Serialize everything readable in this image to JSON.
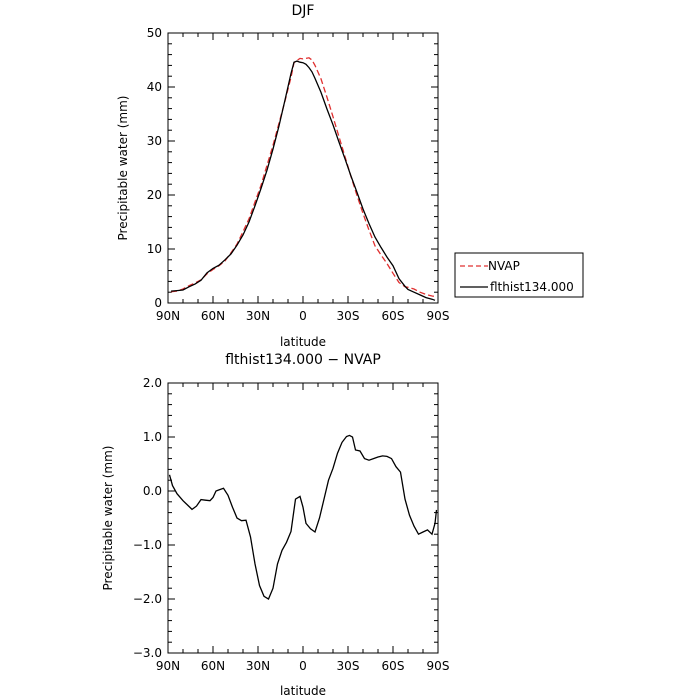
{
  "chart_data": [
    {
      "type": "line",
      "title": "DJF",
      "xlabel": "latitude",
      "ylabel": "Precipitable water (mm)",
      "xlim": [
        90,
        -90
      ],
      "ylim": [
        0,
        50
      ],
      "x_ticks": [
        90,
        60,
        30,
        0,
        -30,
        -60,
        -90
      ],
      "x_tick_labels": [
        "90N",
        "60N",
        "30N",
        "0",
        "30S",
        "60S",
        "90S"
      ],
      "y_ticks": [
        0,
        10,
        20,
        30,
        40,
        50
      ],
      "y_tick_labels": [
        "0",
        "10",
        "20",
        "30",
        "40",
        "50"
      ],
      "legend": "outside-right",
      "grid": false,
      "series": [
        {
          "name": "NVAP",
          "color": "#e03030",
          "style": "dashed",
          "x": [
            88,
            84,
            80,
            76,
            72,
            68,
            64,
            60,
            56,
            52,
            48,
            44,
            40,
            36,
            32,
            28,
            24,
            20,
            16,
            12,
            8,
            6,
            4,
            2,
            0,
            -2,
            -4,
            -6,
            -8,
            -12,
            -16,
            -20,
            -24,
            -28,
            -32,
            -36,
            -40,
            -44,
            -48,
            -52,
            -56,
            -60,
            -64,
            -68,
            -70,
            -74,
            -78,
            -82,
            -86,
            -88
          ],
          "y": [
            2.1,
            2.2,
            2.6,
            3.2,
            3.7,
            4.3,
            5.4,
            6.2,
            6.9,
            7.8,
            9.3,
            10.9,
            13.2,
            15.6,
            18.7,
            21.8,
            25.5,
            29.2,
            33.3,
            37.4,
            41.8,
            44.5,
            44.9,
            45.3,
            45.2,
            45.3,
            45.4,
            45.0,
            44.0,
            41.5,
            38.1,
            34.5,
            30.8,
            27.1,
            23.4,
            19.9,
            16.6,
            13.5,
            10.6,
            8.9,
            7.3,
            5.5,
            3.8,
            3.0,
            2.9,
            2.6,
            2.0,
            1.6,
            1.3,
            1.2
          ]
        },
        {
          "name": "flthist134.000",
          "color": "#000000",
          "style": "solid",
          "x": [
            88,
            84,
            80,
            76,
            72,
            68,
            64,
            60,
            56,
            52,
            48,
            44,
            40,
            36,
            32,
            28,
            24,
            20,
            16,
            12,
            8,
            6,
            4,
            2,
            0,
            -2,
            -4,
            -6,
            -8,
            -12,
            -16,
            -20,
            -24,
            -28,
            -32,
            -36,
            -40,
            -44,
            -48,
            -52,
            -56,
            -60,
            -64,
            -68,
            -70,
            -74,
            -78,
            -82,
            -86,
            -88
          ],
          "y": [
            2.2,
            2.3,
            2.4,
            3.0,
            3.5,
            4.2,
            5.6,
            6.4,
            7.0,
            8.0,
            9.1,
            10.7,
            12.6,
            15.0,
            18.0,
            21.2,
            24.6,
            28.5,
            32.8,
            37.6,
            42.5,
            44.6,
            44.8,
            44.6,
            44.5,
            44.2,
            43.6,
            42.8,
            41.6,
            39.0,
            35.9,
            33.0,
            29.8,
            26.7,
            23.5,
            20.5,
            17.4,
            14.7,
            12.2,
            10.3,
            8.5,
            6.9,
            4.5,
            3.1,
            2.5,
            2.0,
            1.5,
            1.0,
            0.7,
            0.5
          ]
        }
      ]
    },
    {
      "type": "line",
      "title": "flthist134.000 − NVAP",
      "xlabel": "latitude",
      "ylabel": "Precipitable water (mm)",
      "xlim": [
        90,
        -90
      ],
      "ylim": [
        -3.0,
        2.0
      ],
      "x_ticks": [
        90,
        60,
        30,
        0,
        -30,
        -60,
        -90
      ],
      "x_tick_labels": [
        "90N",
        "60N",
        "30N",
        "0",
        "30S",
        "60S",
        "90S"
      ],
      "y_ticks": [
        -3,
        -2,
        -1,
        0,
        1,
        2
      ],
      "y_tick_labels": [
        "−3.0",
        "−2.0",
        "−1.0",
        "0.0",
        "1.0",
        "2.0"
      ],
      "legend": "none",
      "grid": false,
      "series": [
        {
          "color": "#000000",
          "style": "solid",
          "x": [
            89,
            87,
            84,
            80,
            77,
            74,
            71,
            68,
            65,
            62,
            60,
            58,
            56,
            53,
            50,
            47,
            44,
            41,
            38,
            35,
            32,
            29,
            26,
            23,
            20,
            17,
            14,
            11,
            8,
            5,
            2,
            0,
            -2,
            -5,
            -8,
            -11,
            -14,
            -17,
            -20,
            -23,
            -26,
            -29,
            -31,
            -33,
            -35,
            -38,
            -41,
            -44,
            -47,
            -50,
            -53,
            -56,
            -59,
            -62,
            -65,
            -68,
            -71,
            -74,
            -77,
            -80,
            -83,
            -86,
            -88,
            -89
          ],
          "y": [
            0.3,
            0.1,
            -0.05,
            -0.18,
            -0.26,
            -0.34,
            -0.28,
            -0.16,
            -0.17,
            -0.18,
            -0.12,
            0.0,
            0.02,
            0.05,
            -0.08,
            -0.3,
            -0.5,
            -0.55,
            -0.54,
            -0.85,
            -1.35,
            -1.75,
            -1.95,
            -2.0,
            -1.8,
            -1.35,
            -1.1,
            -0.95,
            -0.75,
            -0.15,
            -0.1,
            -0.3,
            -0.6,
            -0.7,
            -0.76,
            -0.5,
            -0.15,
            0.2,
            0.42,
            0.7,
            0.9,
            1.01,
            1.03,
            1.0,
            0.76,
            0.74,
            0.6,
            0.57,
            0.6,
            0.63,
            0.65,
            0.64,
            0.6,
            0.45,
            0.35,
            -0.15,
            -0.45,
            -0.65,
            -0.8,
            -0.76,
            -0.72,
            -0.8,
            -0.6,
            -0.35
          ]
        }
      ]
    }
  ]
}
